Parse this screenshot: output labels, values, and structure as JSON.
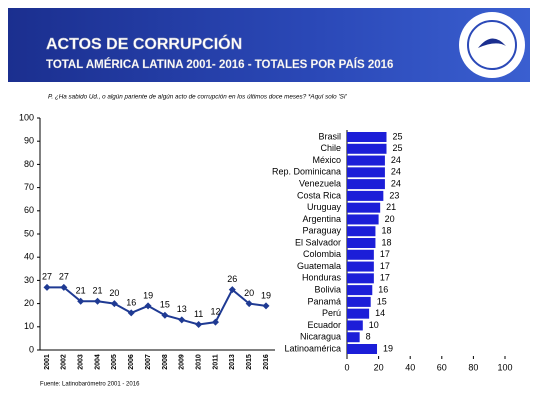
{
  "header": {
    "title": "ACTOS DE CORRUPCIÓN",
    "subtitle": "TOTAL AMÉRICA LATINA 2001- 2016 - TOTALES POR PAÍS 2016"
  },
  "question": "P. ¿Ha sabido Ud., o algún pariente de algún acto de corrupción en los últimos doce meses? *Aquí solo 'Sí'",
  "source": "Fuente: Latinobarómetro 2001 - 2016",
  "chart_data": [
    {
      "type": "line",
      "categories": [
        "2001",
        "2002",
        "2003",
        "2004",
        "2005",
        "2006",
        "2007",
        "2008",
        "2009",
        "2010",
        "2011",
        "2013",
        "2015",
        "2016"
      ],
      "values": [
        27,
        27,
        21,
        21,
        20,
        16,
        19,
        15,
        13,
        11,
        12,
        26,
        20,
        19
      ],
      "color": "#1f3a93",
      "ylim": [
        0,
        100
      ],
      "yticks": [
        0,
        10,
        20,
        30,
        40,
        50,
        60,
        70,
        80,
        90,
        100
      ]
    },
    {
      "type": "bar",
      "orientation": "horizontal",
      "categories": [
        "Brasil",
        "Chile",
        "México",
        "Rep. Dominicana",
        "Venezuela",
        "Costa Rica",
        "Uruguay",
        "Argentina",
        "Paraguay",
        "El Salvador",
        "Colombia",
        "Guatemala",
        "Honduras",
        "Bolivia",
        "Panamá",
        "Perú",
        "Ecuador",
        "Nicaragua",
        "Latinoamérica"
      ],
      "values": [
        25,
        25,
        24,
        24,
        24,
        23,
        21,
        20,
        18,
        18,
        17,
        17,
        17,
        16,
        15,
        14,
        10,
        8,
        19
      ],
      "color": "#1c1ed8",
      "xlim": [
        0,
        100
      ],
      "xticks": [
        0,
        20,
        40,
        60,
        80,
        100
      ]
    }
  ]
}
